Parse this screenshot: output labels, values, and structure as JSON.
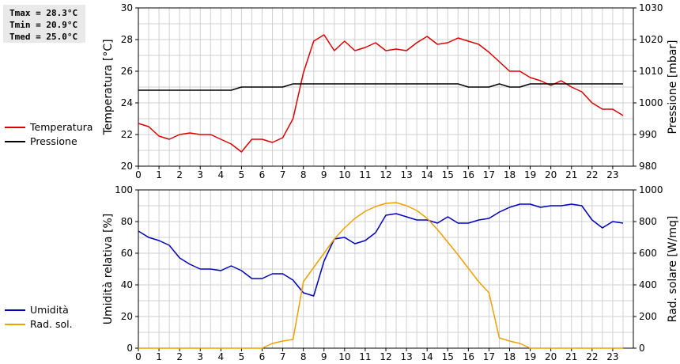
{
  "stats": {
    "tmax": "Tmax = 28.3°C",
    "tmin": "Tmin = 20.9°C",
    "tmed": "Tmed = 25.0°C"
  },
  "colors": {
    "temperatura": "#dd0000",
    "pressione": "#000000",
    "umidita": "#0000bb",
    "radiazione": "#f0a000",
    "grid": "#d0d0d0"
  },
  "chart_data": [
    {
      "type": "line",
      "ylabel": "Temperatura [°C]",
      "y2label": "Pressione [mbar]",
      "ylim": [
        20,
        30
      ],
      "y2lim": [
        980,
        1030
      ],
      "yticks": [
        20,
        22,
        24,
        26,
        28,
        30
      ],
      "y2ticks": [
        980,
        990,
        1000,
        1010,
        1020,
        1030
      ],
      "xlim": [
        0,
        24
      ],
      "xticks": [
        "0",
        "1",
        "2",
        "3",
        "4",
        "5",
        "6",
        "7",
        "8",
        "9",
        "10",
        "11",
        "12",
        "13",
        "14",
        "15",
        "16",
        "17",
        "18",
        "19",
        "20",
        "21",
        "22",
        "23"
      ],
      "grid": true,
      "series": [
        {
          "name": "Temperatura",
          "axis": "left",
          "x": [
            0,
            0.5,
            1,
            1.5,
            2,
            2.5,
            3,
            3.5,
            4,
            4.5,
            5,
            5.5,
            6,
            6.5,
            7,
            7.5,
            8,
            8.5,
            9,
            9.5,
            10,
            10.5,
            11,
            11.5,
            12,
            12.5,
            13,
            13.5,
            14,
            14.5,
            15,
            15.5,
            16,
            16.5,
            17,
            17.5,
            18,
            18.5,
            19,
            19.5,
            20,
            20.5,
            21,
            21.5,
            22,
            22.5,
            23,
            23.5
          ],
          "y": [
            22.7,
            22.5,
            21.9,
            21.7,
            22.0,
            22.1,
            22.0,
            22.0,
            21.7,
            21.4,
            20.9,
            21.7,
            21.7,
            21.5,
            21.8,
            23.0,
            25.9,
            27.9,
            28.3,
            27.3,
            27.9,
            27.3,
            27.5,
            27.8,
            27.3,
            27.4,
            27.3,
            27.8,
            28.2,
            27.7,
            27.8,
            28.1,
            27.9,
            27.7,
            27.2,
            26.6,
            26.0,
            26.0,
            25.6,
            25.4,
            25.1,
            25.4,
            25.0,
            24.7,
            24.0,
            23.6,
            23.6,
            23.2
          ]
        },
        {
          "name": "Pressione",
          "axis": "right",
          "x": [
            0,
            0.5,
            1,
            1.5,
            2,
            2.5,
            3,
            3.5,
            4,
            4.5,
            5,
            5.5,
            6,
            6.5,
            7,
            7.5,
            8,
            8.5,
            9,
            9.5,
            10,
            10.5,
            11,
            11.5,
            12,
            12.5,
            13,
            13.5,
            14,
            14.5,
            15,
            15.5,
            16,
            16.5,
            17,
            17.5,
            18,
            18.5,
            19,
            19.5,
            20,
            20.5,
            21,
            21.5,
            22,
            22.5,
            23,
            23.5
          ],
          "y": [
            1004,
            1004,
            1004,
            1004,
            1004,
            1004,
            1004,
            1004,
            1004,
            1004,
            1005,
            1005,
            1005,
            1005,
            1005,
            1006,
            1006,
            1006,
            1006,
            1006,
            1006,
            1006,
            1006,
            1006,
            1006,
            1006,
            1006,
            1006,
            1006,
            1006,
            1006,
            1006,
            1005,
            1005,
            1005,
            1006,
            1005,
            1005,
            1006,
            1006,
            1006,
            1006,
            1006,
            1006,
            1006,
            1006,
            1006,
            1006
          ]
        }
      ]
    },
    {
      "type": "line",
      "ylabel": "Umidità relativa [%]",
      "y2label": "Rad. solare [W/mq]",
      "ylim": [
        0,
        100
      ],
      "y2lim": [
        0,
        1000
      ],
      "yticks": [
        0,
        20,
        40,
        60,
        80,
        100
      ],
      "y2ticks": [
        0,
        200,
        400,
        600,
        800,
        1000
      ],
      "xlim": [
        0,
        24
      ],
      "xticks": [
        "0",
        "1",
        "2",
        "3",
        "4",
        "5",
        "6",
        "7",
        "8",
        "9",
        "10",
        "11",
        "12",
        "13",
        "14",
        "15",
        "16",
        "17",
        "18",
        "19",
        "20",
        "21",
        "22",
        "23"
      ],
      "grid": true,
      "series": [
        {
          "name": "Umidità",
          "axis": "left",
          "x": [
            0,
            0.5,
            1,
            1.5,
            2,
            2.5,
            3,
            3.5,
            4,
            4.5,
            5,
            5.5,
            6,
            6.5,
            7,
            7.5,
            8,
            8.5,
            9,
            9.5,
            10,
            10.5,
            11,
            11.5,
            12,
            12.5,
            13,
            13.5,
            14,
            14.5,
            15,
            15.5,
            16,
            16.5,
            17,
            17.5,
            18,
            18.5,
            19,
            19.5,
            20,
            20.5,
            21,
            21.5,
            22,
            22.5,
            23,
            23.5
          ],
          "y": [
            74,
            70,
            68,
            65,
            57,
            53,
            50,
            50,
            49,
            52,
            49,
            44,
            44,
            47,
            47,
            43,
            35,
            33,
            55,
            69,
            70,
            66,
            68,
            73,
            84,
            85,
            83,
            81,
            81,
            79,
            83,
            79,
            79,
            81,
            82,
            86,
            89,
            91,
            91,
            89,
            90,
            90,
            91,
            90,
            81,
            76,
            80,
            79
          ]
        },
        {
          "name": "Rad. sol.",
          "axis": "right",
          "x": [
            0,
            0.5,
            1,
            1.5,
            2,
            2.5,
            3,
            3.5,
            4,
            4.5,
            5,
            5.5,
            6,
            6.5,
            7,
            7.5,
            8,
            8.5,
            9,
            9.5,
            10,
            10.5,
            11,
            11.5,
            12,
            12.5,
            13,
            13.5,
            14,
            14.5,
            15,
            15.5,
            16,
            16.5,
            17,
            17.5,
            18,
            18.5,
            19,
            19.5,
            20,
            20.5,
            21,
            21.5,
            22,
            22.5,
            23,
            23.5
          ],
          "y": [
            0,
            0,
            0,
            0,
            0,
            0,
            0,
            0,
            0,
            0,
            0,
            0,
            0,
            30,
            45,
            55,
            420,
            510,
            600,
            690,
            760,
            820,
            865,
            895,
            915,
            920,
            900,
            870,
            820,
            750,
            670,
            590,
            505,
            420,
            350,
            65,
            45,
            30,
            0,
            0,
            0,
            0,
            0,
            0,
            0,
            0,
            0,
            0
          ]
        }
      ]
    }
  ]
}
